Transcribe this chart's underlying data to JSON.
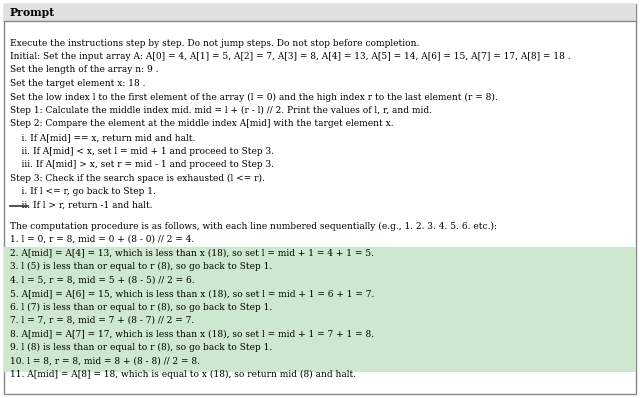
{
  "title": "Prompt",
  "prompt_lines": [
    "Execute the instructions step by step. Do not jump steps. Do not stop before completion.",
    "Initial: Set the input array A: A[0] = 4, A[1] = 5, A[2] = 7, A[3] = 8, A[4] = 13, A[5] = 14, A[6] = 15, A[7] = 17, A[8] = 18 .",
    "Set the length of the array n: 9 .",
    "Set the target element x: 18 .",
    "Set the low index l to the first element of the array (l = 0) and the high index r to the last element (r = 8).",
    "Step 1: Calculate the middle index mid. mid = l + (r - l) // 2. Print the values of l, r, and mid.",
    "Step 2: Compare the element at the middle index A[mid] with the target element x.",
    "    i. If A[mid] == x, return mid and halt.",
    "    ii. If A[mid] < x, set l = mid + 1 and proceed to Step 3.",
    "    iii. If A[mid] > x, set r = mid - 1 and proceed to Step 3.",
    "Step 3: Check if the search space is exhausted (l <= r).",
    "    i. If l <= r, go back to Step 1.",
    "    ii. If l > r, return -1 and halt."
  ],
  "output_intro": "The computation procedure is as follows, with each line numbered sequentially (e.g., 1. 2. 3. 4. 5. 6. etc.):",
  "output_lines": [
    {
      "num": 1,
      "text": "l = 0, r = 8, mid = 0 + (8 - 0) // 2 = 4.",
      "highlight": false
    },
    {
      "num": 2,
      "text": "A[mid] = A[4] = 13, which is less than x (18), so set l = mid + 1 = 4 + 1 = 5.",
      "highlight": true
    },
    {
      "num": 3,
      "text": "l (5) is less than or equal to r (8), so go back to Step 1.",
      "highlight": true
    },
    {
      "num": 4,
      "text": "l = 5, r = 8, mid = 5 + (8 - 5) // 2 = 6.",
      "highlight": true
    },
    {
      "num": 5,
      "text": "A[mid] = A[6] = 15, which is less than x (18), so set l = mid + 1 = 6 + 1 = 7.",
      "highlight": true
    },
    {
      "num": 6,
      "text": "l (7) is less than or equal to r (8), so go back to Step 1.",
      "highlight": true
    },
    {
      "num": 7,
      "text": "l = 7, r = 8, mid = 7 + (8 - 7) // 2 = 7.",
      "highlight": true
    },
    {
      "num": 8,
      "text": "A[mid] = A[7] = 17, which is less than x (18), so set l = mid + 1 = 7 + 1 = 8.",
      "highlight": true
    },
    {
      "num": 9,
      "text": "l (8) is less than or equal to r (8), so go back to Step 1.",
      "highlight": true
    },
    {
      "num": 10,
      "text": "l = 8, r = 8, mid = 8 + (8 - 8) // 2 = 8.",
      "highlight": true
    },
    {
      "num": 11,
      "text": "A[mid] = A[8] = 18, which is equal to x (18), so return mid (8) and halt.",
      "highlight": true
    }
  ],
  "highlight_color": "#cde8ce",
  "border_color": "#888888",
  "title_bg": "#e0e0e0",
  "bg_color": "#ffffff",
  "font_size": 6.5,
  "title_font_size": 7.8
}
